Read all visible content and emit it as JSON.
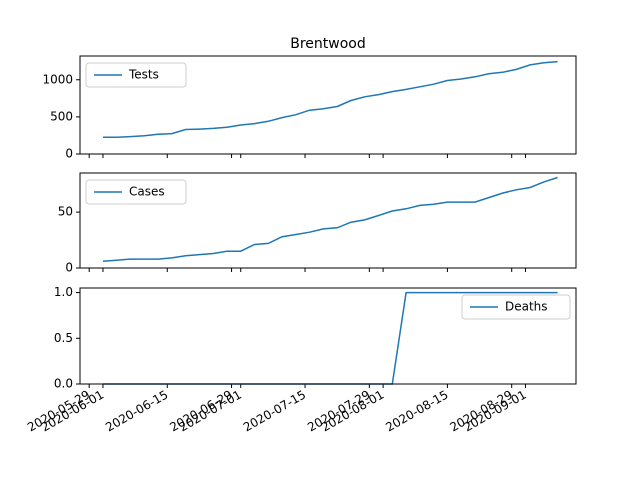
{
  "chart_data": [
    {
      "type": "line",
      "title": "Brentwood",
      "x": [
        "2020-06-01",
        "2020-06-04",
        "2020-06-07",
        "2020-06-10",
        "2020-06-13",
        "2020-06-16",
        "2020-06-19",
        "2020-06-22",
        "2020-06-25",
        "2020-06-28",
        "2020-07-01",
        "2020-07-04",
        "2020-07-07",
        "2020-07-10",
        "2020-07-13",
        "2020-07-16",
        "2020-07-19",
        "2020-07-22",
        "2020-07-25",
        "2020-07-28",
        "2020-07-31",
        "2020-08-03",
        "2020-08-06",
        "2020-08-09",
        "2020-08-12",
        "2020-08-15",
        "2020-08-18",
        "2020-08-21",
        "2020-08-24",
        "2020-08-27",
        "2020-08-30",
        "2020-09-02",
        "2020-09-05",
        "2020-09-08"
      ],
      "series": [
        {
          "name": "Tests",
          "color": "#1f77b4",
          "values": [
            225,
            225,
            235,
            245,
            265,
            275,
            330,
            335,
            345,
            360,
            390,
            410,
            440,
            490,
            530,
            590,
            610,
            640,
            720,
            770,
            800,
            840,
            870,
            905,
            940,
            990,
            1010,
            1040,
            1080,
            1100,
            1140,
            1200,
            1230,
            1245
          ]
        }
      ],
      "xlim": [
        "2020-05-27",
        "2020-09-12"
      ],
      "ylim": [
        0,
        1320
      ],
      "yticks": [
        0,
        500,
        1000
      ],
      "legend": "upper left"
    },
    {
      "type": "line",
      "x": [
        "2020-06-01",
        "2020-06-04",
        "2020-06-07",
        "2020-06-10",
        "2020-06-13",
        "2020-06-16",
        "2020-06-19",
        "2020-06-22",
        "2020-06-25",
        "2020-06-28",
        "2020-07-01",
        "2020-07-04",
        "2020-07-07",
        "2020-07-10",
        "2020-07-13",
        "2020-07-16",
        "2020-07-19",
        "2020-07-22",
        "2020-07-25",
        "2020-07-28",
        "2020-07-31",
        "2020-08-03",
        "2020-08-06",
        "2020-08-09",
        "2020-08-12",
        "2020-08-15",
        "2020-08-18",
        "2020-08-21",
        "2020-08-24",
        "2020-08-27",
        "2020-08-30",
        "2020-09-02",
        "2020-09-05",
        "2020-09-08"
      ],
      "series": [
        {
          "name": "Cases",
          "color": "#1f77b4",
          "values": [
            6,
            7,
            8,
            8,
            8,
            9,
            11,
            12,
            13,
            15,
            15,
            21,
            22,
            28,
            30,
            32,
            35,
            36,
            41,
            43,
            47,
            51,
            53,
            56,
            57,
            59,
            59,
            59,
            63,
            67,
            70,
            72,
            77,
            81
          ]
        }
      ],
      "xlim": [
        "2020-05-27",
        "2020-09-12"
      ],
      "ylim": [
        0,
        85
      ],
      "yticks": [
        0,
        50
      ],
      "legend": "upper left"
    },
    {
      "type": "line",
      "x": [
        "2020-06-01",
        "2020-06-04",
        "2020-06-07",
        "2020-06-10",
        "2020-06-13",
        "2020-06-16",
        "2020-06-19",
        "2020-06-22",
        "2020-06-25",
        "2020-06-28",
        "2020-07-01",
        "2020-07-04",
        "2020-07-07",
        "2020-07-10",
        "2020-07-13",
        "2020-07-16",
        "2020-07-19",
        "2020-07-22",
        "2020-07-25",
        "2020-07-28",
        "2020-07-31",
        "2020-08-03",
        "2020-08-06",
        "2020-08-09",
        "2020-08-12",
        "2020-08-15",
        "2020-08-18",
        "2020-08-21",
        "2020-08-24",
        "2020-08-27",
        "2020-08-30",
        "2020-09-02",
        "2020-09-05",
        "2020-09-08"
      ],
      "series": [
        {
          "name": "Deaths",
          "color": "#1f77b4",
          "values": [
            0,
            0,
            0,
            0,
            0,
            0,
            0,
            0,
            0,
            0,
            0,
            0,
            0,
            0,
            0,
            0,
            0,
            0,
            0,
            0,
            0,
            0,
            1,
            1,
            1,
            1,
            1,
            1,
            1,
            1,
            1,
            1,
            1,
            1
          ]
        }
      ],
      "xlim": [
        "2020-05-27",
        "2020-09-12"
      ],
      "ylim": [
        0,
        1.05
      ],
      "yticks": [
        {
          "value": 0,
          "label": "0.0"
        },
        {
          "value": 0.5,
          "label": "0.5"
        },
        {
          "value": 1,
          "label": "1.0"
        }
      ],
      "xticks": [
        "2020-05-29",
        "2020-06-01",
        "2020-06-15",
        "2020-06-29",
        "2020-07-01",
        "2020-07-15",
        "2020-07-29",
        "2020-08-01",
        "2020-08-15",
        "2020-08-29",
        "2020-09-01"
      ],
      "legend": "upper right"
    }
  ]
}
